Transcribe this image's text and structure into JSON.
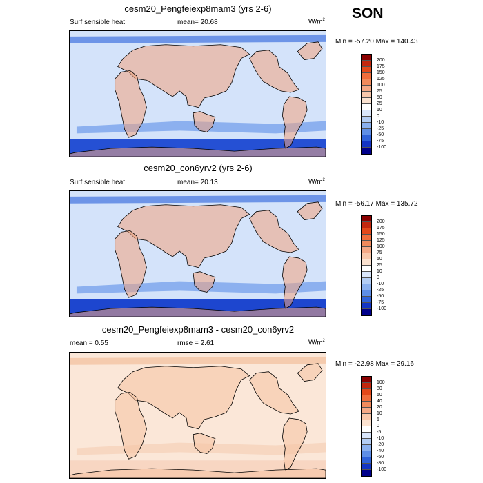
{
  "season": "SON",
  "panels": [
    {
      "title": "cesm20_Pengfeiexp8mam3 (yrs 2-6)",
      "left_label": "Surf sensible heat",
      "mid_label": "mean=  20.68",
      "units_base": "W/m",
      "units_sup": "2",
      "minmax": "Min = -57.20 Max = 140.43",
      "levels": [
        "200",
        "175",
        "150",
        "125",
        "100",
        "75",
        "50",
        "25",
        "10",
        "0",
        "-10",
        "-25",
        "-50",
        "-75",
        "-100"
      ],
      "colors": [
        "#8b0000",
        "#c2270e",
        "#e2481a",
        "#ef6d3c",
        "#f08a5c",
        "#f4a886",
        "#f8c7ab",
        "#fbe2d0",
        "#ffffff",
        "#d9e6fb",
        "#b3cdf4",
        "#8ab0ee",
        "#5e8ee6",
        "#2f62d9",
        "#1435c4",
        "#00008b"
      ]
    },
    {
      "title": "cesm20_con6yrv2 (yrs 2-6)",
      "left_label": "Surf sensible heat",
      "mid_label": "mean=  20.13",
      "units_base": "W/m",
      "units_sup": "2",
      "minmax": "Min = -56.17 Max = 135.72",
      "levels": [
        "200",
        "175",
        "150",
        "125",
        "100",
        "75",
        "50",
        "25",
        "10",
        "0",
        "-10",
        "-25",
        "-50",
        "-75",
        "-100"
      ],
      "colors": [
        "#8b0000",
        "#c2270e",
        "#e2481a",
        "#ef6d3c",
        "#f08a5c",
        "#f4a886",
        "#f8c7ab",
        "#fbe2d0",
        "#ffffff",
        "#d9e6fb",
        "#b3cdf4",
        "#8ab0ee",
        "#5e8ee6",
        "#2f62d9",
        "#1435c4",
        "#00008b"
      ]
    },
    {
      "title": "cesm20_Pengfeiexp8mam3 - cesm20_con6yrv2",
      "left_label": "mean =   0.55",
      "mid_label": "rmse =   2.61",
      "units_base": "W/m",
      "units_sup": "2",
      "minmax": "Min = -22.98 Max =  29.16",
      "levels": [
        "100",
        "80",
        "60",
        "40",
        "20",
        "10",
        "5",
        "0",
        "-5",
        "-10",
        "-20",
        "-40",
        "-60",
        "-80",
        "-100"
      ],
      "colors": [
        "#8b0000",
        "#c2270e",
        "#e2481a",
        "#ef6d3c",
        "#f08a5c",
        "#f4a886",
        "#f8c7ab",
        "#fbe2d0",
        "#ffffff",
        "#d9e6fb",
        "#b3cdf4",
        "#8ab0ee",
        "#5e8ee6",
        "#2f62d9",
        "#1435c4",
        "#00008b"
      ]
    }
  ]
}
